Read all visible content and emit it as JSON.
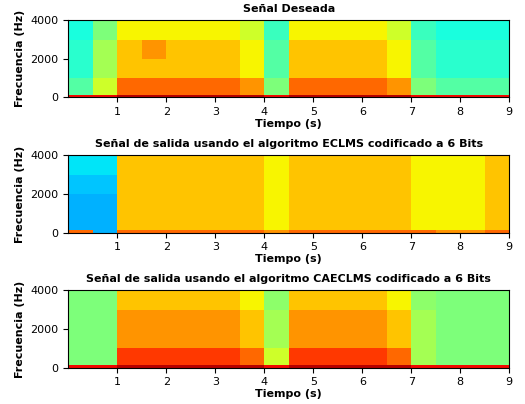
{
  "chart_data": [
    {
      "type": "heatmap",
      "title": "Señal Deseada",
      "x_label": "Tiempo (s)",
      "y_label": "Frecuencia (Hz)",
      "xlim": [
        0,
        9
      ],
      "xticks": [
        1,
        2,
        3,
        4,
        5,
        6,
        7,
        8,
        9
      ],
      "ylim": [
        0,
        4000
      ],
      "yticks": [
        0,
        2000,
        4000
      ],
      "time_edges": [
        0,
        0.5,
        1,
        1.5,
        2,
        2.5,
        3,
        3.5,
        4,
        4.5,
        5,
        5.5,
        6,
        6.5,
        7,
        7.5,
        8,
        8.5,
        9
      ],
      "frequency_edges": [
        0,
        150,
        1000,
        2000,
        3000,
        4000
      ],
      "value_range": [
        0,
        10
      ],
      "cells": [
        [
          9,
          9,
          9.5,
          9.5,
          9.5,
          9.5,
          9.5,
          9.5,
          9,
          9.5,
          9.5,
          9.5,
          9.5,
          9.5,
          9,
          9,
          9,
          9
        ],
        [
          4.5,
          6,
          8,
          8,
          8,
          8,
          8,
          7.5,
          5,
          8,
          8,
          8,
          8,
          7.5,
          5,
          4.5,
          4.5,
          4.5
        ],
        [
          4,
          5.5,
          7,
          7,
          7,
          7,
          7,
          6.5,
          4.5,
          7,
          7,
          7,
          7,
          6.5,
          4.5,
          4,
          4,
          4
        ],
        [
          4,
          5.5,
          7,
          7.5,
          7,
          7,
          7,
          6.5,
          4.5,
          7,
          7,
          7,
          7,
          6.5,
          4.5,
          4,
          4,
          4
        ],
        [
          3.8,
          5,
          6.5,
          6.5,
          6.5,
          6.5,
          6.5,
          6,
          4.2,
          6.5,
          6.5,
          6.5,
          6.5,
          6,
          4.2,
          3.8,
          3.8,
          3.8
        ]
      ]
    },
    {
      "type": "heatmap",
      "title": "Señal de salida usando el algoritmo ECLMS codificado a 6 Bits",
      "x_label": "Tiempo (s)",
      "y_label": "Frecuencia (Hz)",
      "xlim": [
        0,
        9
      ],
      "xticks": [
        1,
        2,
        3,
        4,
        5,
        6,
        7,
        8,
        9
      ],
      "ylim": [
        0,
        4000
      ],
      "yticks": [
        0,
        2000,
        4000
      ],
      "time_edges": [
        0,
        0.5,
        1,
        1.5,
        2,
        2.5,
        3,
        3.5,
        4,
        4.5,
        5,
        5.5,
        6,
        6.5,
        7,
        7.5,
        8,
        8.5,
        9
      ],
      "frequency_edges": [
        0,
        150,
        1000,
        2000,
        3000,
        4000
      ],
      "value_range": [
        0,
        10
      ],
      "cells": [
        [
          8,
          3,
          8,
          8,
          8,
          8,
          8,
          8,
          7.5,
          8,
          8,
          8,
          8,
          8,
          8,
          7.5,
          7.5,
          8
        ],
        [
          3,
          3,
          7,
          7,
          7,
          7,
          7,
          7,
          6.5,
          7,
          7,
          7,
          7,
          7,
          6.5,
          6.5,
          6.5,
          7
        ],
        [
          3,
          3,
          7,
          7,
          7,
          7,
          7,
          7,
          6.5,
          7,
          7,
          7,
          7,
          7,
          6.5,
          6.5,
          6.5,
          7
        ],
        [
          3.2,
          3.2,
          7,
          7,
          7,
          7,
          7,
          7,
          6.5,
          7,
          7,
          7,
          7,
          7,
          6.5,
          6.5,
          6.5,
          7
        ],
        [
          3.5,
          3.5,
          7,
          7,
          7,
          7,
          7,
          7,
          6.5,
          7,
          7,
          7,
          7,
          7,
          6.5,
          6.5,
          6.5,
          7
        ]
      ]
    },
    {
      "type": "heatmap",
      "title": "Señal de salida usando el algoritmo CAECLMS codificado a 6 Bits",
      "x_label": "Tiempo (s)",
      "y_label": "Frecuencia (Hz)",
      "xlim": [
        0,
        9
      ],
      "xticks": [
        1,
        2,
        3,
        4,
        5,
        6,
        7,
        8,
        9
      ],
      "ylim": [
        0,
        4000
      ],
      "yticks": [
        0,
        2000,
        4000
      ],
      "time_edges": [
        0,
        0.5,
        1,
        1.5,
        2,
        2.5,
        3,
        3.5,
        4,
        4.5,
        5,
        5.5,
        6,
        6.5,
        7,
        7.5,
        8,
        8.5,
        9
      ],
      "frequency_edges": [
        0,
        150,
        1000,
        2000,
        3000,
        4000
      ],
      "value_range": [
        0,
        10
      ],
      "cells": [
        [
          9,
          9,
          9.5,
          9.5,
          9.5,
          9.5,
          9.5,
          9.5,
          9,
          9.5,
          9.5,
          9.5,
          9.5,
          9.5,
          9,
          9,
          9,
          9
        ],
        [
          5,
          5,
          8.5,
          8.5,
          8.5,
          8.5,
          8.5,
          8,
          6,
          8.5,
          8.5,
          8.5,
          8.5,
          8,
          5.5,
          5,
          5,
          5
        ],
        [
          5,
          5,
          7.5,
          7.5,
          7.5,
          7.5,
          7.5,
          7,
          5.5,
          7.5,
          7.5,
          7.5,
          7.5,
          7,
          5.5,
          5,
          5,
          5
        ],
        [
          5,
          5,
          7.5,
          7.5,
          7.5,
          7.5,
          7.5,
          7,
          5.5,
          7.5,
          7.5,
          7.5,
          7.5,
          7,
          5.5,
          5,
          5,
          5
        ],
        [
          5,
          5,
          7,
          7,
          7,
          7,
          7,
          6.5,
          5.2,
          7,
          7,
          7,
          7,
          6.5,
          5.2,
          5,
          5,
          5
        ]
      ]
    }
  ]
}
